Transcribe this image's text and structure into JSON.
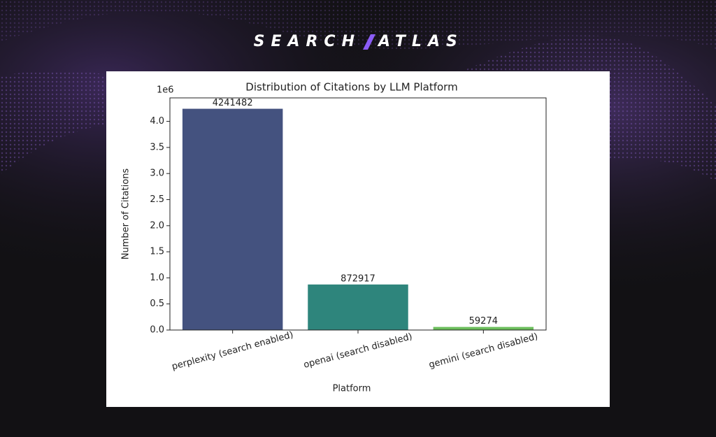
{
  "header": {
    "brand": [
      "SEARCH",
      "ATLAS"
    ]
  },
  "chart_data": {
    "type": "bar",
    "title": "Distribution of Citations by LLM Platform",
    "xlabel": "Platform",
    "ylabel": "Number of Citations",
    "y_offset_label": "1e6",
    "categories": [
      "perplexity (search enabled)",
      "openai (search disabled)",
      "gemini (search disabled)"
    ],
    "values": [
      4241482,
      872917,
      59274
    ],
    "colors": [
      "#44527f",
      "#2e857c",
      "#6cbe5c"
    ],
    "ylim": [
      0,
      4450000
    ],
    "yticks": [
      {
        "value": 0,
        "label": "0.0"
      },
      {
        "value": 500000,
        "label": "0.5"
      },
      {
        "value": 1000000,
        "label": "1.0"
      },
      {
        "value": 1500000,
        "label": "1.5"
      },
      {
        "value": 2000000,
        "label": "2.0"
      },
      {
        "value": 2500000,
        "label": "2.5"
      },
      {
        "value": 3000000,
        "label": "3.0"
      },
      {
        "value": 3500000,
        "label": "3.5"
      },
      {
        "value": 4000000,
        "label": "4.0"
      }
    ],
    "grid": false
  }
}
